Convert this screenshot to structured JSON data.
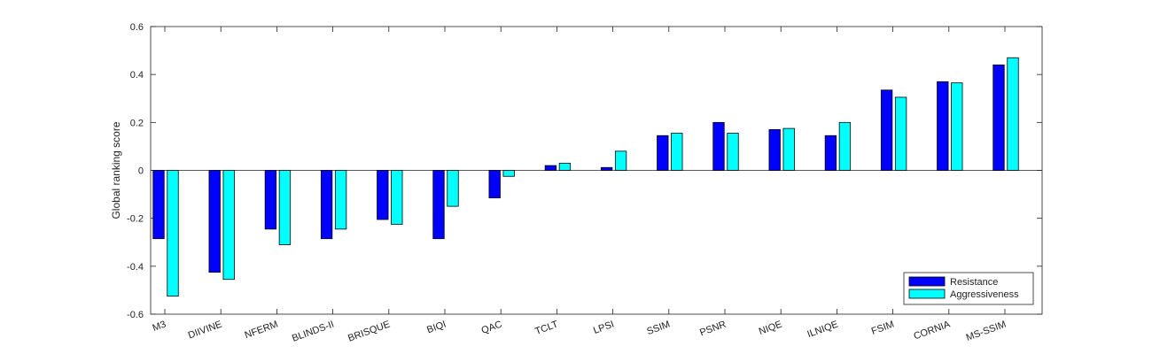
{
  "chart_data": {
    "type": "bar",
    "title": "",
    "xlabel": "",
    "ylabel": "Global ranking score",
    "ylim": [
      -0.6,
      0.6
    ],
    "yticks": [
      -0.6,
      -0.4,
      -0.2,
      0,
      0.2,
      0.4,
      0.6
    ],
    "ytick_labels": [
      "-0.6",
      "-0.4",
      "-0.2",
      "0",
      "0.2",
      "0.4",
      "0.6"
    ],
    "categories": [
      "M3",
      "DIIVINE",
      "NFERM",
      "BLINDS-II",
      "BRISQUE",
      "BIQI",
      "QAC",
      "TCLT",
      "LPSI",
      "SSIM",
      "PSNR",
      "NIQE",
      "ILNIQE",
      "FSIM",
      "CORNIA",
      "MS-SSIM"
    ],
    "series": [
      {
        "name": "Resistance",
        "color": "#0000ff",
        "values": [
          -0.285,
          -0.425,
          -0.245,
          -0.285,
          -0.205,
          -0.285,
          -0.115,
          0.02,
          0.012,
          0.145,
          0.2,
          0.17,
          0.145,
          0.335,
          0.37,
          0.44
        ]
      },
      {
        "name": "Aggressiveness",
        "color": "#00ffff",
        "values": [
          -0.525,
          -0.455,
          -0.31,
          -0.245,
          -0.225,
          -0.15,
          -0.025,
          0.03,
          0.08,
          0.155,
          0.155,
          0.175,
          0.2,
          0.305,
          0.365,
          0.47
        ]
      }
    ],
    "grid": false,
    "legend_position": "bottom-right"
  }
}
